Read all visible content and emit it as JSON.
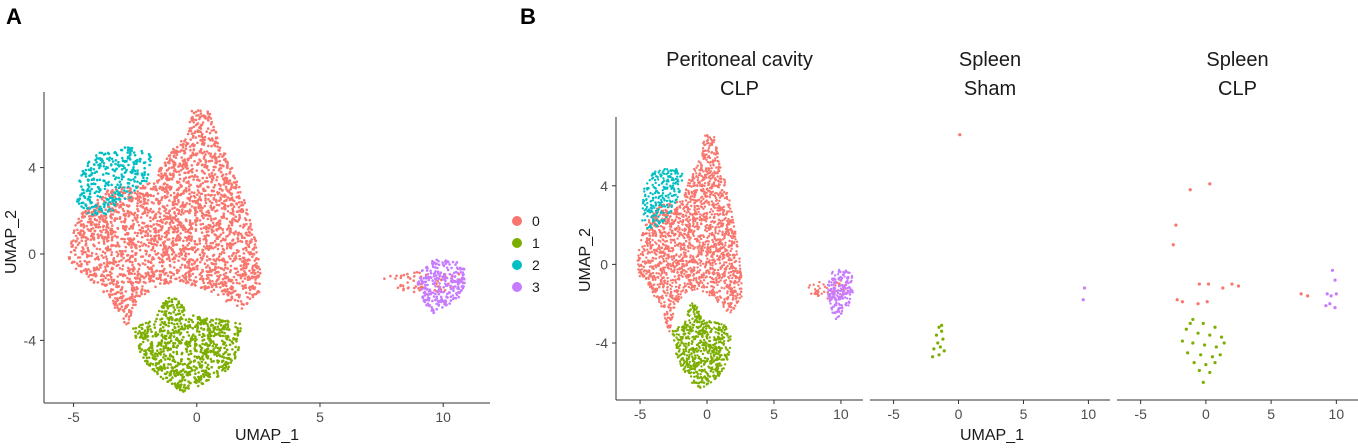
{
  "panels": {
    "a_label": "A",
    "b_label": "B"
  },
  "colors": {
    "0": "#F8766D",
    "1": "#7CAE00",
    "2": "#00BFC4",
    "3": "#C77CFF"
  },
  "chart_data": [
    {
      "id": "A",
      "type": "scatter",
      "title": "",
      "xlabel": "UMAP_1",
      "ylabel": "UMAP_2",
      "xlim": [
        -6.2,
        11.9
      ],
      "ylim": [
        -6.9,
        7.5
      ],
      "xticks": [
        -5,
        0,
        5,
        10
      ],
      "yticks": [
        -4,
        0,
        4
      ],
      "legend": {
        "position": "right",
        "entries": [
          {
            "label": "0",
            "cluster": "0"
          },
          {
            "label": "1",
            "cluster": "1"
          },
          {
            "label": "2",
            "cluster": "2"
          },
          {
            "label": "3",
            "cluster": "3"
          }
        ]
      },
      "clusters": [
        {
          "name": "0",
          "region": "main body",
          "x_range": [
            -5.2,
            2.6
          ],
          "y_range": [
            -3.6,
            6.8
          ]
        },
        {
          "name": "0",
          "region": "small group",
          "x_range": [
            7.5,
            10.8
          ],
          "y_range": [
            -2.4,
            -0.8
          ]
        },
        {
          "name": "1",
          "region": "bottom",
          "x_range": [
            -2.6,
            1.8
          ],
          "y_range": [
            -6.4,
            -1.8
          ]
        },
        {
          "name": "2",
          "region": "upper left",
          "x_range": [
            -4.9,
            -1.7
          ],
          "y_range": [
            1.8,
            5.0
          ]
        },
        {
          "name": "3",
          "region": "right",
          "x_range": [
            8.9,
            10.9
          ],
          "y_range": [
            -2.8,
            -0.2
          ]
        }
      ]
    },
    {
      "id": "B",
      "type": "scatter",
      "xlabel": "UMAP_1",
      "ylabel": "UMAP_2",
      "xlim": [
        -6.2,
        11.2
      ],
      "ylim": [
        -6.9,
        7.5
      ],
      "xticks": [
        -5,
        0,
        5,
        10
      ],
      "yticks": [
        -4,
        0,
        4
      ],
      "facets": [
        {
          "title_line1": "Peritoneal cavity",
          "title_line2": "CLP",
          "dense": true,
          "clusters": [
            {
              "name": "0",
              "region": "main body",
              "x_range": [
                -5.2,
                2.6
              ],
              "y_range": [
                -3.6,
                6.8
              ]
            },
            {
              "name": "0",
              "region": "small group",
              "x_range": [
                7.5,
                10.8
              ],
              "y_range": [
                -2.4,
                -0.8
              ]
            },
            {
              "name": "1",
              "region": "bottom",
              "x_range": [
                -2.6,
                1.8
              ],
              "y_range": [
                -6.4,
                -1.8
              ]
            },
            {
              "name": "2",
              "region": "upper left",
              "x_range": [
                -4.9,
                -1.7
              ],
              "y_range": [
                1.8,
                5.0
              ]
            },
            {
              "name": "3",
              "region": "right",
              "x_range": [
                8.9,
                10.9
              ],
              "y_range": [
                -2.8,
                -0.2
              ]
            }
          ]
        },
        {
          "title_line1": "Spleen",
          "title_line2": "Sham",
          "dense": false,
          "points": [
            {
              "x": 0.1,
              "y": 6.6,
              "c": "0"
            },
            {
              "x": 9.7,
              "y": -1.2,
              "c": "3"
            },
            {
              "x": 9.6,
              "y": -1.8,
              "c": "3"
            },
            {
              "x": -1.5,
              "y": -3.2,
              "c": "1"
            },
            {
              "x": -1.3,
              "y": -3.4,
              "c": "1"
            },
            {
              "x": -1.7,
              "y": -3.6,
              "c": "1"
            },
            {
              "x": -1.2,
              "y": -3.8,
              "c": "1"
            },
            {
              "x": -1.6,
              "y": -4.0,
              "c": "1"
            },
            {
              "x": -1.4,
              "y": -4.2,
              "c": "1"
            },
            {
              "x": -1.9,
              "y": -4.3,
              "c": "1"
            },
            {
              "x": -1.1,
              "y": -4.4,
              "c": "1"
            },
            {
              "x": -1.5,
              "y": -4.6,
              "c": "1"
            },
            {
              "x": -2.0,
              "y": -4.7,
              "c": "1"
            },
            {
              "x": -1.3,
              "y": -3.1,
              "c": "1"
            }
          ]
        },
        {
          "title_line1": "Spleen",
          "title_line2": "CLP",
          "dense": false,
          "points": [
            {
              "x": -1.2,
              "y": 3.8,
              "c": "0"
            },
            {
              "x": 0.3,
              "y": 4.1,
              "c": "0"
            },
            {
              "x": -2.3,
              "y": 2.0,
              "c": "0"
            },
            {
              "x": -2.5,
              "y": 1.0,
              "c": "0"
            },
            {
              "x": -0.5,
              "y": -1.0,
              "c": "0"
            },
            {
              "x": 0.2,
              "y": -1.0,
              "c": "0"
            },
            {
              "x": 1.3,
              "y": -1.2,
              "c": "0"
            },
            {
              "x": 2.0,
              "y": -1.0,
              "c": "0"
            },
            {
              "x": 2.5,
              "y": -1.1,
              "c": "0"
            },
            {
              "x": -2.2,
              "y": -1.8,
              "c": "0"
            },
            {
              "x": -1.8,
              "y": -1.9,
              "c": "0"
            },
            {
              "x": -0.6,
              "y": -2.0,
              "c": "0"
            },
            {
              "x": 0.1,
              "y": -1.9,
              "c": "0"
            },
            {
              "x": 7.3,
              "y": -1.5,
              "c": "0"
            },
            {
              "x": 7.8,
              "y": -1.6,
              "c": "0"
            },
            {
              "x": 9.7,
              "y": -0.3,
              "c": "3"
            },
            {
              "x": 9.9,
              "y": -0.8,
              "c": "3"
            },
            {
              "x": 9.3,
              "y": -1.5,
              "c": "3"
            },
            {
              "x": 9.6,
              "y": -1.6,
              "c": "3"
            },
            {
              "x": 10.0,
              "y": -1.5,
              "c": "3"
            },
            {
              "x": 9.5,
              "y": -2.0,
              "c": "3"
            },
            {
              "x": 9.9,
              "y": -2.2,
              "c": "3"
            },
            {
              "x": 9.2,
              "y": -2.1,
              "c": "3"
            },
            {
              "x": -1.0,
              "y": -2.8,
              "c": "1"
            },
            {
              "x": -0.2,
              "y": -3.0,
              "c": "1"
            },
            {
              "x": 0.7,
              "y": -3.2,
              "c": "1"
            },
            {
              "x": -1.5,
              "y": -3.3,
              "c": "1"
            },
            {
              "x": -0.6,
              "y": -3.5,
              "c": "1"
            },
            {
              "x": 0.3,
              "y": -3.6,
              "c": "1"
            },
            {
              "x": 1.2,
              "y": -3.7,
              "c": "1"
            },
            {
              "x": -1.8,
              "y": -3.9,
              "c": "1"
            },
            {
              "x": -1.0,
              "y": -4.0,
              "c": "1"
            },
            {
              "x": -0.1,
              "y": -4.1,
              "c": "1"
            },
            {
              "x": 0.8,
              "y": -4.2,
              "c": "1"
            },
            {
              "x": -1.4,
              "y": -4.5,
              "c": "1"
            },
            {
              "x": -0.4,
              "y": -4.6,
              "c": "1"
            },
            {
              "x": 0.5,
              "y": -4.7,
              "c": "1"
            },
            {
              "x": 1.1,
              "y": -4.6,
              "c": "1"
            },
            {
              "x": -0.9,
              "y": -5.0,
              "c": "1"
            },
            {
              "x": 0.0,
              "y": -5.1,
              "c": "1"
            },
            {
              "x": 0.7,
              "y": -5.0,
              "c": "1"
            },
            {
              "x": -0.5,
              "y": -5.4,
              "c": "1"
            },
            {
              "x": 0.3,
              "y": -5.5,
              "c": "1"
            },
            {
              "x": -0.2,
              "y": -6.0,
              "c": "1"
            },
            {
              "x": 1.4,
              "y": -4.0,
              "c": "1"
            },
            {
              "x": -1.2,
              "y": -3.0,
              "c": "1"
            }
          ]
        }
      ]
    }
  ]
}
